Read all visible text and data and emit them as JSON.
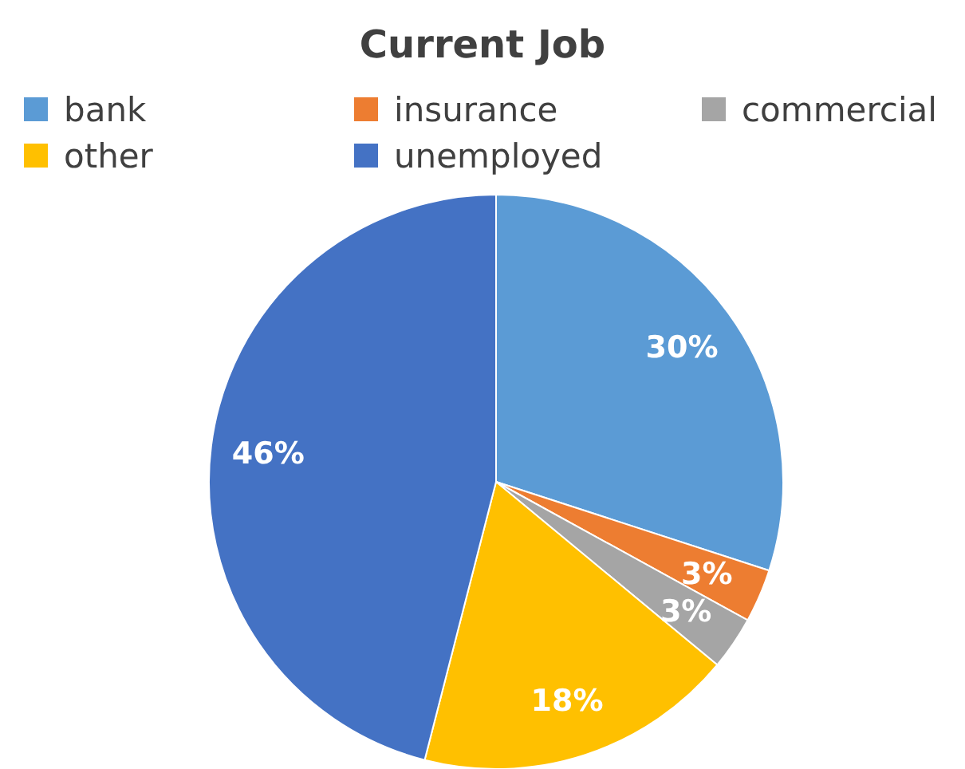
{
  "chart_data": {
    "type": "pie",
    "title": "Current Job",
    "legend": "top",
    "categories": [
      "bank",
      "insurance",
      "commercial",
      "other",
      "unemployed"
    ],
    "values": [
      30,
      3,
      3,
      18,
      46
    ],
    "colors": [
      "#5b9bd5",
      "#ed7d31",
      "#a5a5a5",
      "#ffc000",
      "#4472c4"
    ],
    "value_labels": [
      "30%",
      "3%",
      "3%",
      "18%",
      "46%"
    ]
  }
}
